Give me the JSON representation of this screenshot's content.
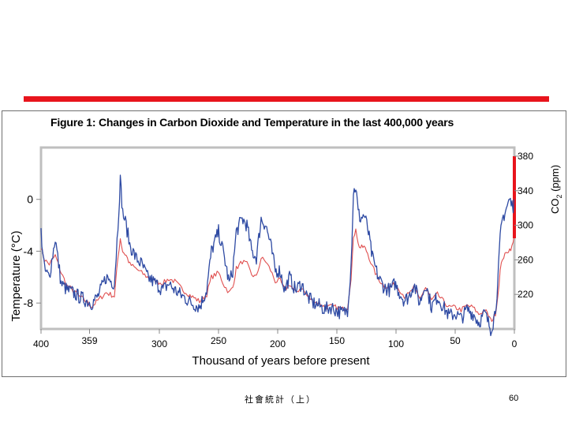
{
  "slide": {
    "accent_color": "#e8141c",
    "footer_left": "社會統計（上）",
    "page_number": "60"
  },
  "chart_data": {
    "type": "line",
    "title": "Figure 1: Changes in Carbon  Dioxide and Temperature in the last 400,000 years",
    "xlabel": "Thousand of years before present",
    "x_ticks": [
      "400",
      "359",
      "300",
      "250",
      "200",
      "150",
      "100",
      "50",
      "0"
    ],
    "x_range": [
      400,
      0
    ],
    "left_axis": {
      "label": "Temperature (°C)",
      "ticks": [
        "0",
        "-4",
        "-8"
      ],
      "range": [
        -10,
        4
      ]
    },
    "right_axis": {
      "label_main": "CO",
      "label_sub": "2",
      "label_unit": "(ppm)",
      "ticks": [
        "380",
        "340",
        "300",
        "260",
        "220"
      ],
      "range": [
        180,
        390
      ]
    },
    "series": [
      {
        "name": "CO2 (ppm)",
        "axis": "right",
        "color": "#e05050",
        "x": [
          400,
          397,
          393,
          388,
          383,
          378,
          373,
          368,
          362,
          357,
          352,
          345,
          338,
          335,
          333,
          331,
          328,
          325,
          320,
          315,
          310,
          303,
          297,
          292,
          287,
          280,
          273,
          266,
          260,
          256,
          250,
          245,
          241,
          238,
          235,
          230,
          226,
          222,
          218,
          214,
          210,
          206,
          202,
          198,
          194,
          190,
          185,
          180,
          175,
          170,
          165,
          160,
          155,
          150,
          145,
          141,
          138,
          136,
          134,
          132,
          130,
          127,
          124,
          120,
          115,
          110,
          105,
          101,
          97,
          93,
          89,
          85,
          80,
          75,
          70,
          65,
          60,
          55,
          50,
          45,
          40,
          35,
          30,
          25,
          22,
          20,
          18,
          16,
          14,
          12,
          10,
          8,
          6,
          4,
          2,
          1,
          0.5
        ],
        "values": [
          275,
          260,
          255,
          265,
          245,
          230,
          225,
          218,
          212,
          206,
          213,
          222,
          218,
          262,
          285,
          270,
          265,
          255,
          250,
          245,
          240,
          235,
          233,
          238,
          235,
          225,
          218,
          212,
          220,
          240,
          245,
          230,
          222,
          228,
          250,
          258,
          255,
          243,
          240,
          262,
          258,
          248,
          235,
          236,
          225,
          232,
          222,
          228,
          218,
          212,
          210,
          205,
          206,
          205,
          203,
          205,
          240,
          283,
          298,
          278,
          274,
          275,
          268,
          252,
          238,
          230,
          228,
          232,
          226,
          218,
          220,
          228,
          215,
          228,
          213,
          220,
          212,
          205,
          205,
          202,
          207,
          205,
          197,
          202,
          196,
          190,
          192,
          198,
          218,
          247,
          262,
          265,
          270,
          272,
          275,
          280,
          285
        ]
      },
      {
        "name": "CO2 recent rise (ppm)",
        "axis": "right",
        "color": "#e8141c",
        "x": [
          0,
          0
        ],
        "values": [
          285,
          380
        ]
      },
      {
        "name": "Temperature (°C)",
        "axis": "left",
        "color": "#2e4aa3",
        "x": [
          400,
          397,
          393,
          388,
          383,
          378,
          373,
          368,
          362,
          357,
          352,
          345,
          338,
          335,
          333,
          331,
          328,
          325,
          320,
          315,
          310,
          303,
          297,
          292,
          287,
          280,
          273,
          266,
          260,
          256,
          250,
          245,
          241,
          238,
          235,
          230,
          226,
          222,
          218,
          214,
          210,
          206,
          202,
          198,
          194,
          190,
          185,
          180,
          175,
          170,
          165,
          160,
          155,
          150,
          145,
          141,
          138,
          136,
          134,
          132,
          130,
          127,
          124,
          120,
          115,
          110,
          105,
          101,
          97,
          93,
          89,
          85,
          80,
          75,
          70,
          65,
          60,
          55,
          50,
          45,
          40,
          35,
          30,
          25,
          22,
          20,
          18,
          16,
          14,
          12,
          10,
          8,
          6,
          4,
          2,
          1,
          0.5
        ],
        "values": [
          -2.5,
          -5.5,
          -6,
          -3,
          -6.5,
          -7,
          -7.2,
          -7.5,
          -7.8,
          -8,
          -7.5,
          -6,
          -6.5,
          -2,
          1.5,
          -1,
          -2,
          -3.5,
          -4.5,
          -5,
          -6,
          -6.5,
          -7,
          -6.5,
          -7,
          -7.5,
          -8,
          -8.3,
          -7,
          -4,
          -2.5,
          -4.5,
          -6.5,
          -5.5,
          -2.5,
          -1.5,
          -2,
          -4,
          -4.5,
          -1.5,
          -2,
          -3.5,
          -5.5,
          -5.5,
          -7,
          -6,
          -7,
          -6.5,
          -7.5,
          -8,
          -8.2,
          -8.5,
          -8.3,
          -8.6,
          -8.8,
          -8.5,
          -5,
          0.5,
          1,
          -1,
          -1.5,
          -1.2,
          -2.2,
          -4.5,
          -6,
          -6.8,
          -7,
          -6.5,
          -7.2,
          -7.8,
          -7.5,
          -6.5,
          -8,
          -6.5,
          -8.3,
          -7.5,
          -8.3,
          -9,
          -8.8,
          -9.2,
          -8.5,
          -8.8,
          -9.5,
          -8.8,
          -9.5,
          -10,
          -9.5,
          -8.5,
          -6.5,
          -3,
          -1.5,
          -1,
          -0.5,
          0,
          -0.5,
          -0.5,
          0
        ]
      }
    ]
  }
}
